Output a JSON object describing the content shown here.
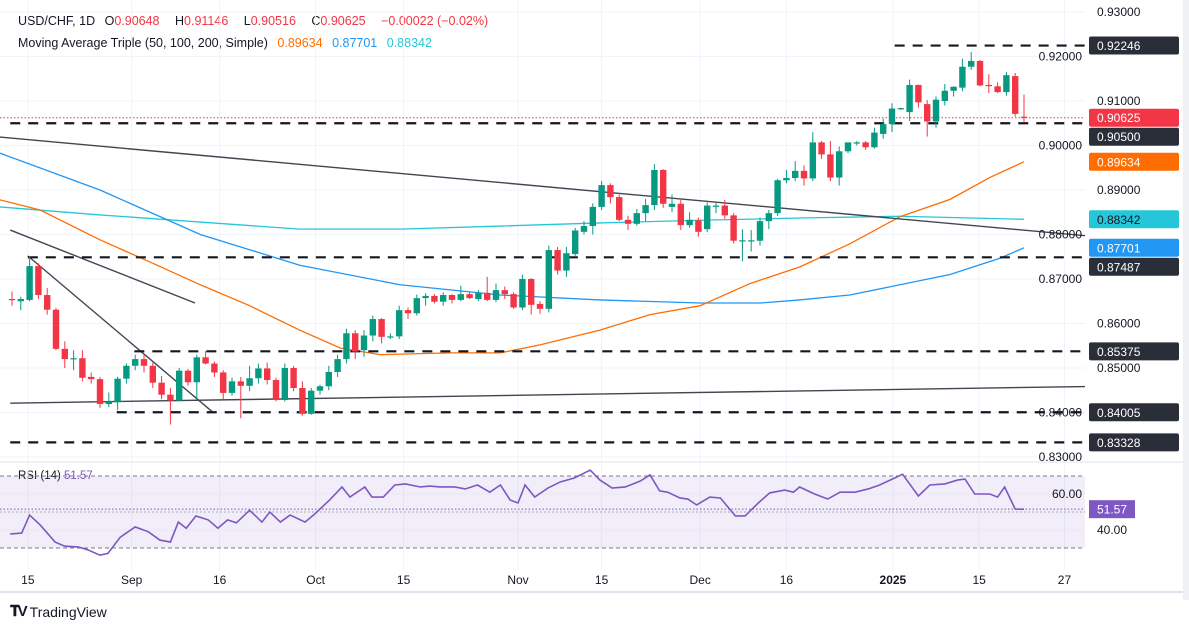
{
  "legend": {
    "symbol": "USD/CHF, 1D",
    "o_label": "O",
    "o": "0.90648",
    "h_label": "H",
    "h": "0.91146",
    "l_label": "L",
    "l": "0.90516",
    "c_label": "C",
    "c": "0.90625",
    "change": "−0.00022 (−0.02%)",
    "ma_title": "Moving Average Triple (50, 100, 200, Simple)",
    "ma50": "0.89634",
    "ma100": "0.87701",
    "ma200": "0.88342",
    "rsi_title": "RSI (14)",
    "rsi_value": "51.57"
  },
  "brand": {
    "name": "TradingView",
    "mark": "17"
  },
  "colors": {
    "up": "#089981",
    "down": "#f23645",
    "ma50": "#ff6d00",
    "ma100": "#2196f3",
    "ma200": "#26c6da",
    "rsi": "#7e57c2",
    "level": "#131722"
  },
  "chart_data": {
    "type": "candlestick",
    "title": "USD/CHF, 1D",
    "ylim": [
      0.83,
      0.93
    ],
    "y_ticks": [
      "0.93000",
      "0.92000",
      "0.91000",
      "0.90000",
      "0.89000",
      "0.88000",
      "0.87000",
      "0.86000",
      "0.85000",
      "0.84000",
      "0.83000"
    ],
    "x_ticks": [
      {
        "label": "15",
        "i": 1.8
      },
      {
        "label": "Sep",
        "i": 13.6
      },
      {
        "label": "16",
        "i": 23.6
      },
      {
        "label": "Oct",
        "i": 34.5
      },
      {
        "label": "15",
        "i": 44.5
      },
      {
        "label": "Nov",
        "i": 57.5
      },
      {
        "label": "15",
        "i": 67
      },
      {
        "label": "Dec",
        "i": 78.2
      },
      {
        "label": "16",
        "i": 88
      },
      {
        "label": "2025",
        "i": 100.1,
        "bold": true
      },
      {
        "label": "15",
        "i": 109.9
      },
      {
        "label": "27",
        "i": 119.6
      }
    ],
    "ohlc": [
      [
        0.8655,
        0.8672,
        0.864,
        0.8653
      ],
      [
        0.865,
        0.866,
        0.863,
        0.8655
      ],
      [
        0.8653,
        0.8751,
        0.865,
        0.8729
      ],
      [
        0.8729,
        0.8735,
        0.8655,
        0.8664
      ],
      [
        0.8664,
        0.868,
        0.862,
        0.8631
      ],
      [
        0.8631,
        0.8635,
        0.854,
        0.8543
      ],
      [
        0.8543,
        0.856,
        0.85,
        0.852
      ],
      [
        0.852,
        0.854,
        0.8495,
        0.8522
      ],
      [
        0.8522,
        0.854,
        0.847,
        0.8478
      ],
      [
        0.848,
        0.849,
        0.8465,
        0.8475
      ],
      [
        0.8475,
        0.848,
        0.841,
        0.8419
      ],
      [
        0.8419,
        0.8445,
        0.8412,
        0.8425
      ],
      [
        0.8423,
        0.848,
        0.8405,
        0.8476
      ],
      [
        0.8476,
        0.851,
        0.8465,
        0.8505
      ],
      [
        0.8505,
        0.853,
        0.8495,
        0.852
      ],
      [
        0.852,
        0.8532,
        0.849,
        0.8505
      ],
      [
        0.8505,
        0.8512,
        0.8455,
        0.8467
      ],
      [
        0.8467,
        0.8482,
        0.843,
        0.844
      ],
      [
        0.844,
        0.8455,
        0.8373,
        0.8427
      ],
      [
        0.8427,
        0.85,
        0.8425,
        0.8494
      ],
      [
        0.8494,
        0.8498,
        0.846,
        0.8468
      ],
      [
        0.8468,
        0.853,
        0.843,
        0.8524
      ],
      [
        0.8524,
        0.8538,
        0.8508,
        0.851
      ],
      [
        0.851,
        0.8515,
        0.848,
        0.849
      ],
      [
        0.849,
        0.8495,
        0.843,
        0.8444
      ],
      [
        0.8444,
        0.8478,
        0.8438,
        0.847
      ],
      [
        0.847,
        0.848,
        0.8387,
        0.846
      ],
      [
        0.846,
        0.8505,
        0.8448,
        0.8477
      ],
      [
        0.8477,
        0.851,
        0.8465,
        0.8499
      ],
      [
        0.8499,
        0.8512,
        0.8463,
        0.8473
      ],
      [
        0.8473,
        0.8478,
        0.8425,
        0.8428
      ],
      [
        0.8428,
        0.851,
        0.8425,
        0.85
      ],
      [
        0.85,
        0.8505,
        0.8448,
        0.8455
      ],
      [
        0.8455,
        0.847,
        0.8393,
        0.8397
      ],
      [
        0.8397,
        0.8455,
        0.8395,
        0.8449
      ],
      [
        0.8449,
        0.8462,
        0.844,
        0.8459
      ],
      [
        0.8459,
        0.8505,
        0.845,
        0.8491
      ],
      [
        0.8491,
        0.853,
        0.848,
        0.852
      ],
      [
        0.852,
        0.8588,
        0.851,
        0.8578
      ],
      [
        0.8578,
        0.8585,
        0.852,
        0.8537
      ],
      [
        0.854,
        0.8585,
        0.8525,
        0.8573
      ],
      [
        0.8573,
        0.8618,
        0.856,
        0.861
      ],
      [
        0.861,
        0.8612,
        0.8555,
        0.857
      ],
      [
        0.857,
        0.8578,
        0.8565,
        0.8571
      ],
      [
        0.8571,
        0.864,
        0.8565,
        0.863
      ],
      [
        0.863,
        0.8636,
        0.861,
        0.8623
      ],
      [
        0.8623,
        0.8665,
        0.8618,
        0.8657
      ],
      [
        0.8657,
        0.8668,
        0.864,
        0.8662
      ],
      [
        0.8662,
        0.8666,
        0.8645,
        0.8649
      ],
      [
        0.8649,
        0.867,
        0.864,
        0.8664
      ],
      [
        0.8664,
        0.8666,
        0.8645,
        0.8653
      ],
      [
        0.8653,
        0.8685,
        0.865,
        0.8666
      ],
      [
        0.8666,
        0.867,
        0.8655,
        0.8657
      ],
      [
        0.8655,
        0.8675,
        0.865,
        0.8669
      ],
      [
        0.8669,
        0.8705,
        0.865,
        0.8653
      ],
      [
        0.8653,
        0.869,
        0.8648,
        0.8675
      ],
      [
        0.8675,
        0.8683,
        0.8655,
        0.8666
      ],
      [
        0.8666,
        0.867,
        0.8633,
        0.8636
      ],
      [
        0.8636,
        0.871,
        0.863,
        0.87
      ],
      [
        0.87,
        0.8702,
        0.862,
        0.8642
      ],
      [
        0.8644,
        0.865,
        0.8622,
        0.8633
      ],
      [
        0.8633,
        0.8775,
        0.8625,
        0.8765
      ],
      [
        0.8765,
        0.8772,
        0.871,
        0.8719
      ],
      [
        0.8719,
        0.8772,
        0.8705,
        0.8758
      ],
      [
        0.8756,
        0.8815,
        0.8752,
        0.8809
      ],
      [
        0.8806,
        0.883,
        0.88,
        0.8819
      ],
      [
        0.8819,
        0.887,
        0.88,
        0.8862
      ],
      [
        0.8862,
        0.892,
        0.8855,
        0.8911
      ],
      [
        0.8911,
        0.8915,
        0.887,
        0.8884
      ],
      [
        0.8884,
        0.889,
        0.883,
        0.8833
      ],
      [
        0.8833,
        0.8842,
        0.881,
        0.8824
      ],
      [
        0.8824,
        0.8857,
        0.882,
        0.8848
      ],
      [
        0.8848,
        0.888,
        0.883,
        0.8866
      ],
      [
        0.8866,
        0.8958,
        0.8855,
        0.8945
      ],
      [
        0.8945,
        0.8947,
        0.886,
        0.8869
      ],
      [
        0.8862,
        0.889,
        0.885,
        0.8869
      ],
      [
        0.8869,
        0.8878,
        0.881,
        0.8821
      ],
      [
        0.8821,
        0.885,
        0.8815,
        0.8833
      ],
      [
        0.8832,
        0.8838,
        0.8795,
        0.8806
      ],
      [
        0.8812,
        0.8872,
        0.8805,
        0.8865
      ],
      [
        0.8865,
        0.8872,
        0.8848,
        0.8865
      ],
      [
        0.8865,
        0.8878,
        0.8835,
        0.8843
      ],
      [
        0.8843,
        0.8848,
        0.878,
        0.8786
      ],
      [
        0.8786,
        0.8812,
        0.874,
        0.8787
      ],
      [
        0.8786,
        0.881,
        0.8762,
        0.8787
      ],
      [
        0.8786,
        0.8838,
        0.8775,
        0.883
      ],
      [
        0.883,
        0.8855,
        0.8812,
        0.8848
      ],
      [
        0.8848,
        0.8925,
        0.8842,
        0.8922
      ],
      [
        0.8922,
        0.8945,
        0.8915,
        0.8927
      ],
      [
        0.8927,
        0.8965,
        0.892,
        0.8943
      ],
      [
        0.8943,
        0.8955,
        0.891,
        0.8926
      ],
      [
        0.8926,
        0.903,
        0.892,
        0.9007
      ],
      [
        0.9007,
        0.901,
        0.897,
        0.898
      ],
      [
        0.898,
        0.901,
        0.892,
        0.8928
      ],
      [
        0.8928,
        0.8998,
        0.891,
        0.8987
      ],
      [
        0.8987,
        0.9005,
        0.8983,
        0.9007
      ],
      [
        0.9006,
        0.901,
        0.9,
        0.9007
      ],
      [
        0.9007,
        0.901,
        0.899,
        0.8996
      ],
      [
        0.8996,
        0.904,
        0.8993,
        0.9029
      ],
      [
        0.9026,
        0.906,
        0.9015,
        0.9048
      ],
      [
        0.9048,
        0.9095,
        0.903,
        0.9083
      ],
      [
        0.9083,
        0.9085,
        0.908,
        0.9084
      ],
      [
        0.9075,
        0.9148,
        0.9055,
        0.9136
      ],
      [
        0.9136,
        0.9137,
        0.9085,
        0.9097
      ],
      [
        0.9093,
        0.9102,
        0.902,
        0.9054
      ],
      [
        0.9054,
        0.911,
        0.904,
        0.9103
      ],
      [
        0.91,
        0.9138,
        0.909,
        0.9123
      ],
      [
        0.9123,
        0.9133,
        0.911,
        0.9132
      ],
      [
        0.913,
        0.9195,
        0.9122,
        0.9177
      ],
      [
        0.9177,
        0.921,
        0.917,
        0.919
      ],
      [
        0.919,
        0.9192,
        0.9133,
        0.9135
      ],
      [
        0.9136,
        0.916,
        0.9118,
        0.9135
      ],
      [
        0.9133,
        0.9142,
        0.9118,
        0.912
      ],
      [
        0.912,
        0.9165,
        0.9112,
        0.9158
      ],
      [
        0.9156,
        0.9163,
        0.9065,
        0.9071
      ],
      [
        0.90648,
        0.91146,
        0.90516,
        0.90625
      ]
    ],
    "ma50": [
      [
        -1.4,
        0.8878
      ],
      [
        3.2,
        0.8855
      ],
      [
        10,
        0.8788
      ],
      [
        15.7,
        0.8738
      ],
      [
        21.4,
        0.8687
      ],
      [
        27,
        0.864
      ],
      [
        32.7,
        0.8585
      ],
      [
        37.3,
        0.8545
      ],
      [
        41.8,
        0.853
      ],
      [
        49.8,
        0.8534
      ],
      [
        55.5,
        0.8534
      ],
      [
        60,
        0.8552
      ],
      [
        66.8,
        0.8585
      ],
      [
        72.5,
        0.862
      ],
      [
        78.2,
        0.864
      ],
      [
        83.9,
        0.869
      ],
      [
        89.5,
        0.8727
      ],
      [
        95.2,
        0.8779
      ],
      [
        100.9,
        0.884
      ],
      [
        106.6,
        0.8879
      ],
      [
        111.1,
        0.8928
      ],
      [
        115,
        0.89634
      ]
    ],
    "ma100": [
      [
        -1.4,
        0.8983
      ],
      [
        10,
        0.89
      ],
      [
        21.4,
        0.88
      ],
      [
        32.7,
        0.8731
      ],
      [
        44.1,
        0.8687
      ],
      [
        55.5,
        0.8664
      ],
      [
        66.8,
        0.8653
      ],
      [
        78.2,
        0.8646
      ],
      [
        85,
        0.8646
      ],
      [
        89.5,
        0.8653
      ],
      [
        95.2,
        0.8664
      ],
      [
        100.9,
        0.8687
      ],
      [
        106.6,
        0.871
      ],
      [
        112.3,
        0.8747
      ],
      [
        115,
        0.87701
      ]
    ],
    "ma200": [
      [
        -1.4,
        0.8862
      ],
      [
        10,
        0.8844
      ],
      [
        21.4,
        0.8828
      ],
      [
        32.7,
        0.8812
      ],
      [
        44.1,
        0.8812
      ],
      [
        55.5,
        0.8819
      ],
      [
        66.8,
        0.8826
      ],
      [
        78.2,
        0.8832
      ],
      [
        89.5,
        0.8837
      ],
      [
        100.9,
        0.8841
      ],
      [
        115,
        0.88342
      ]
    ],
    "levels": [
      {
        "price": 0.92246,
        "label": "0.92246",
        "from": 100.3
      },
      {
        "price": 0.905,
        "label": "0.90500",
        "from": -0.2
      },
      {
        "price": 0.87487,
        "label": "0.87487",
        "from": 1.8
      },
      {
        "price": 0.85375,
        "label": "0.85375",
        "from": 13.9
      },
      {
        "price": 0.84005,
        "label": "0.84005",
        "from": 11.9
      },
      {
        "price": 0.83328,
        "label": "0.83328",
        "from": -0.2
      }
    ],
    "trendlines": [
      [
        [
          -1.4,
          0.9019
        ],
        [
          133.75,
          0.8776
        ]
      ],
      [
        [
          -0.2,
          0.881
        ],
        [
          20.8,
          0.8646
        ]
      ],
      [
        [
          1.8,
          0.8752
        ],
        [
          22.8,
          0.8401
        ]
      ],
      [
        [
          -0.2,
          0.8421
        ],
        [
          133.75,
          0.8462
        ]
      ]
    ],
    "price_badges": [
      {
        "label": "0.90625",
        "price": 0.90625,
        "bg": "#f23645",
        "fg": "#ffffff"
      },
      {
        "label": "0.89634",
        "price": 0.89634,
        "bg": "#ff6d00",
        "fg": "#ffffff"
      },
      {
        "label": "0.88342",
        "price": 0.88342,
        "bg": "#26c6da",
        "fg": "#131722"
      },
      {
        "label": "0.87701",
        "price": 0.87701,
        "bg": "#2196f3",
        "fg": "#ffffff"
      }
    ],
    "rsi": {
      "period": 14,
      "bands": [
        30,
        50,
        70
      ],
      "y_ticks": [
        "60.00",
        "40.00"
      ],
      "ylim": [
        20,
        80
      ],
      "last": "51.57",
      "points": [
        [
          -0.2,
          37.8
        ],
        [
          1.1,
          38.3
        ],
        [
          2,
          48.3
        ],
        [
          3.2,
          42.8
        ],
        [
          4.9,
          33.3
        ],
        [
          6,
          31
        ],
        [
          7.5,
          30.6
        ],
        [
          8.6,
          29
        ],
        [
          10,
          26
        ],
        [
          10.9,
          27
        ],
        [
          12.3,
          36
        ],
        [
          14,
          41.7
        ],
        [
          15.5,
          39
        ],
        [
          16.8,
          34.4
        ],
        [
          18,
          33.3
        ],
        [
          18.9,
          44.4
        ],
        [
          19.8,
          41
        ],
        [
          20.9,
          47.8
        ],
        [
          22.3,
          45.6
        ],
        [
          23.4,
          41
        ],
        [
          24.5,
          45.6
        ],
        [
          25.5,
          44
        ],
        [
          27,
          51
        ],
        [
          28.4,
          44.4
        ],
        [
          29.3,
          50
        ],
        [
          30.5,
          44.4
        ],
        [
          31.6,
          48.3
        ],
        [
          33.3,
          44.4
        ],
        [
          34.4,
          48.9
        ],
        [
          36.1,
          56.7
        ],
        [
          37.5,
          63.9
        ],
        [
          38.4,
          58.3
        ],
        [
          40.1,
          63.9
        ],
        [
          40.9,
          58.3
        ],
        [
          42.2,
          58.3
        ],
        [
          43.5,
          65
        ],
        [
          44.7,
          65.6
        ],
        [
          46.4,
          63.9
        ],
        [
          47.5,
          64.4
        ],
        [
          48.6,
          63.9
        ],
        [
          50.3,
          63.9
        ],
        [
          51.5,
          62.8
        ],
        [
          52.9,
          65
        ],
        [
          54.3,
          61
        ],
        [
          55.5,
          65
        ],
        [
          56.6,
          56.7
        ],
        [
          57.5,
          55
        ],
        [
          58.3,
          65
        ],
        [
          59.4,
          58.3
        ],
        [
          60.9,
          63.3
        ],
        [
          62.3,
          66.7
        ],
        [
          63.9,
          68.9
        ],
        [
          65.7,
          73.3
        ],
        [
          66.8,
          67.8
        ],
        [
          68.2,
          63.3
        ],
        [
          69.7,
          63.9
        ],
        [
          71.4,
          67.2
        ],
        [
          72.5,
          70.6
        ],
        [
          73.6,
          61.7
        ],
        [
          74.5,
          61
        ],
        [
          75.9,
          57.8
        ],
        [
          76.8,
          57.2
        ],
        [
          77.8,
          53.9
        ],
        [
          79.3,
          58.3
        ],
        [
          80.5,
          57.8
        ],
        [
          82.2,
          47.8
        ],
        [
          83.3,
          47.8
        ],
        [
          84.8,
          55
        ],
        [
          86.1,
          60.6
        ],
        [
          87.8,
          62.2
        ],
        [
          88.8,
          61
        ],
        [
          89.5,
          63.9
        ],
        [
          91.2,
          60
        ],
        [
          92.7,
          57.2
        ],
        [
          94.1,
          61
        ],
        [
          95.8,
          61
        ],
        [
          97.3,
          62.8
        ],
        [
          98.6,
          65
        ],
        [
          100.3,
          68.9
        ],
        [
          101.2,
          71
        ],
        [
          103,
          58.9
        ],
        [
          104.3,
          65
        ],
        [
          106,
          65.6
        ],
        [
          107.5,
          67.8
        ],
        [
          108.3,
          68.3
        ],
        [
          109.4,
          60
        ],
        [
          111.1,
          60
        ],
        [
          112,
          58.3
        ],
        [
          112.8,
          63.9
        ],
        [
          114,
          51.6
        ],
        [
          115,
          51.57
        ]
      ]
    }
  }
}
